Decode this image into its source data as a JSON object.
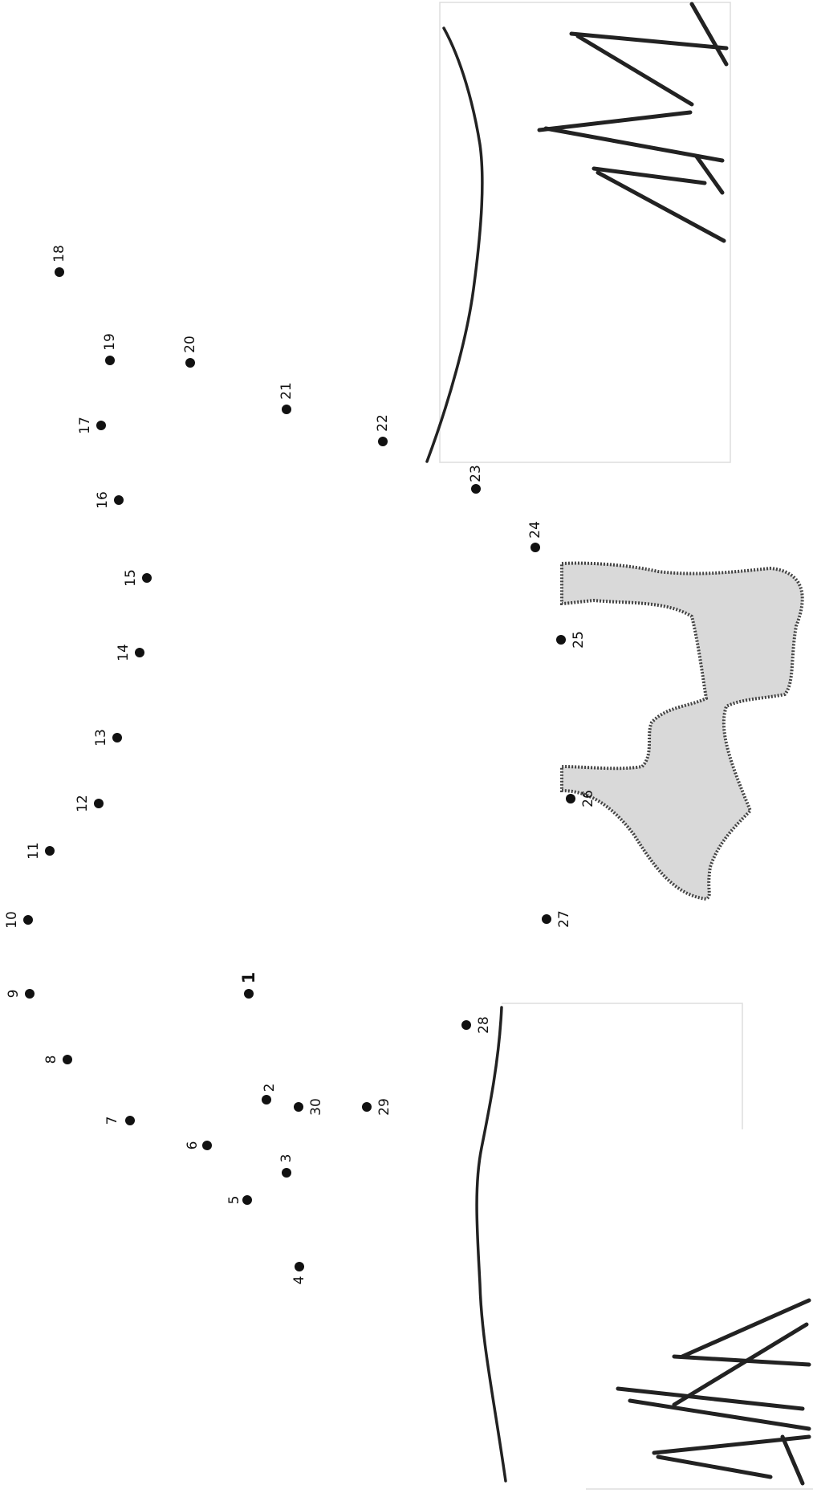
{
  "worksheet": {
    "dots": [
      {
        "n": "1"
      },
      {
        "n": "2"
      },
      {
        "n": "3"
      },
      {
        "n": "4"
      },
      {
        "n": "5"
      },
      {
        "n": "6"
      },
      {
        "n": "7"
      },
      {
        "n": "8"
      },
      {
        "n": "9"
      },
      {
        "n": "10"
      },
      {
        "n": "11"
      },
      {
        "n": "12"
      },
      {
        "n": "13"
      },
      {
        "n": "14"
      },
      {
        "n": "15"
      },
      {
        "n": "16"
      },
      {
        "n": "17"
      },
      {
        "n": "18"
      },
      {
        "n": "19"
      },
      {
        "n": "20"
      },
      {
        "n": "21"
      },
      {
        "n": "22"
      },
      {
        "n": "23"
      },
      {
        "n": "24"
      },
      {
        "n": "25"
      },
      {
        "n": "26"
      },
      {
        "n": "27"
      },
      {
        "n": "28"
      },
      {
        "n": "29"
      },
      {
        "n": "30"
      }
    ],
    "colors": {
      "dot": "#111111",
      "line": "#222222",
      "shade": "#d9d9d9",
      "frame": "#dddddd"
    }
  }
}
